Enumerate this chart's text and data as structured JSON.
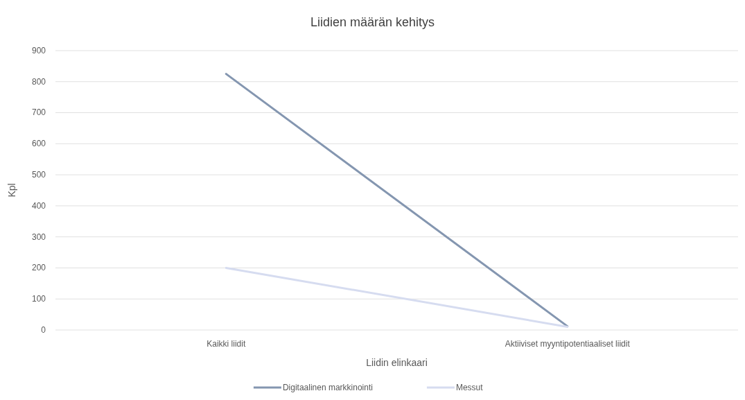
{
  "chart_data": {
    "type": "line",
    "title": "Liidien määrän kehitys",
    "xlabel": "Liidin elinkaari",
    "ylabel": "Kpl",
    "categories": [
      "Kaikki liidit",
      "Aktiiviset myyntipotentiaaliset liidit"
    ],
    "series": [
      {
        "name": "Digitaalinen markkinointi",
        "color": "#8496b0",
        "values": [
          825,
          12
        ]
      },
      {
        "name": "Messut",
        "color": "#d6dcf0",
        "values": [
          200,
          10
        ]
      }
    ],
    "ylim": [
      0,
      900
    ],
    "yticks": [
      0,
      100,
      200,
      300,
      400,
      500,
      600,
      700,
      800,
      900
    ],
    "grid": "y",
    "legend": "bottom",
    "marker": "none",
    "line_style": "solid"
  }
}
